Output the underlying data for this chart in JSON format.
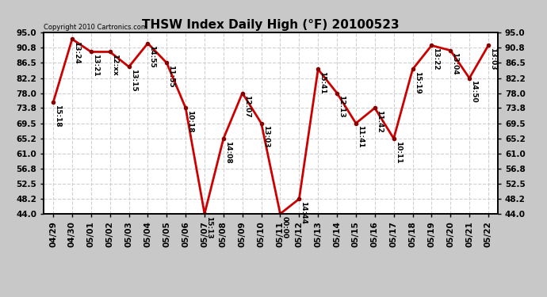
{
  "title": "THSW Index Daily High (°F) 20100523",
  "copyright": "Copyright 2010 Cartronics.com",
  "dates": [
    "04/29",
    "04/30",
    "05/01",
    "05/02",
    "05/03",
    "05/04",
    "05/05",
    "05/06",
    "05/07",
    "05/08",
    "05/09",
    "05/10",
    "05/11",
    "05/12",
    "05/13",
    "05/14",
    "05/15",
    "05/16",
    "05/17",
    "05/18",
    "05/19",
    "05/20",
    "05/21",
    "05/22"
  ],
  "values": [
    75.4,
    93.2,
    89.6,
    89.6,
    85.4,
    92.0,
    86.5,
    73.8,
    44.0,
    65.2,
    78.0,
    69.5,
    44.0,
    48.2,
    84.7,
    78.0,
    69.5,
    73.8,
    65.2,
    84.7,
    91.4,
    90.0,
    82.2,
    91.4
  ],
  "labels": [
    "15:18",
    "13:24",
    "13:21",
    "12:xx",
    "13:15",
    "14:55",
    "11:55",
    "10:18",
    "15:13",
    "14:08",
    "12:07",
    "13:03",
    "00:00",
    "14:44",
    "15:41",
    "12:13",
    "11:41",
    "11:42",
    "10:11",
    "15:19",
    "13:22",
    "13:04",
    "14:50",
    "13:03"
  ],
  "ylim_min": 44.0,
  "ylim_max": 95.0,
  "yticks": [
    44.0,
    48.2,
    52.5,
    56.8,
    61.0,
    65.2,
    69.5,
    73.8,
    78.0,
    82.2,
    86.5,
    90.8,
    95.0
  ],
  "line_color": "#cc0000",
  "marker_color": "#880000",
  "bg_color": "#c8c8c8",
  "plot_bg_color": "#ffffff",
  "grid_color": "#d0d0d0",
  "title_fontsize": 11,
  "label_fontsize": 6.5,
  "tick_fontsize": 7.5,
  "figsize": [
    6.9,
    3.75
  ],
  "dpi": 100
}
